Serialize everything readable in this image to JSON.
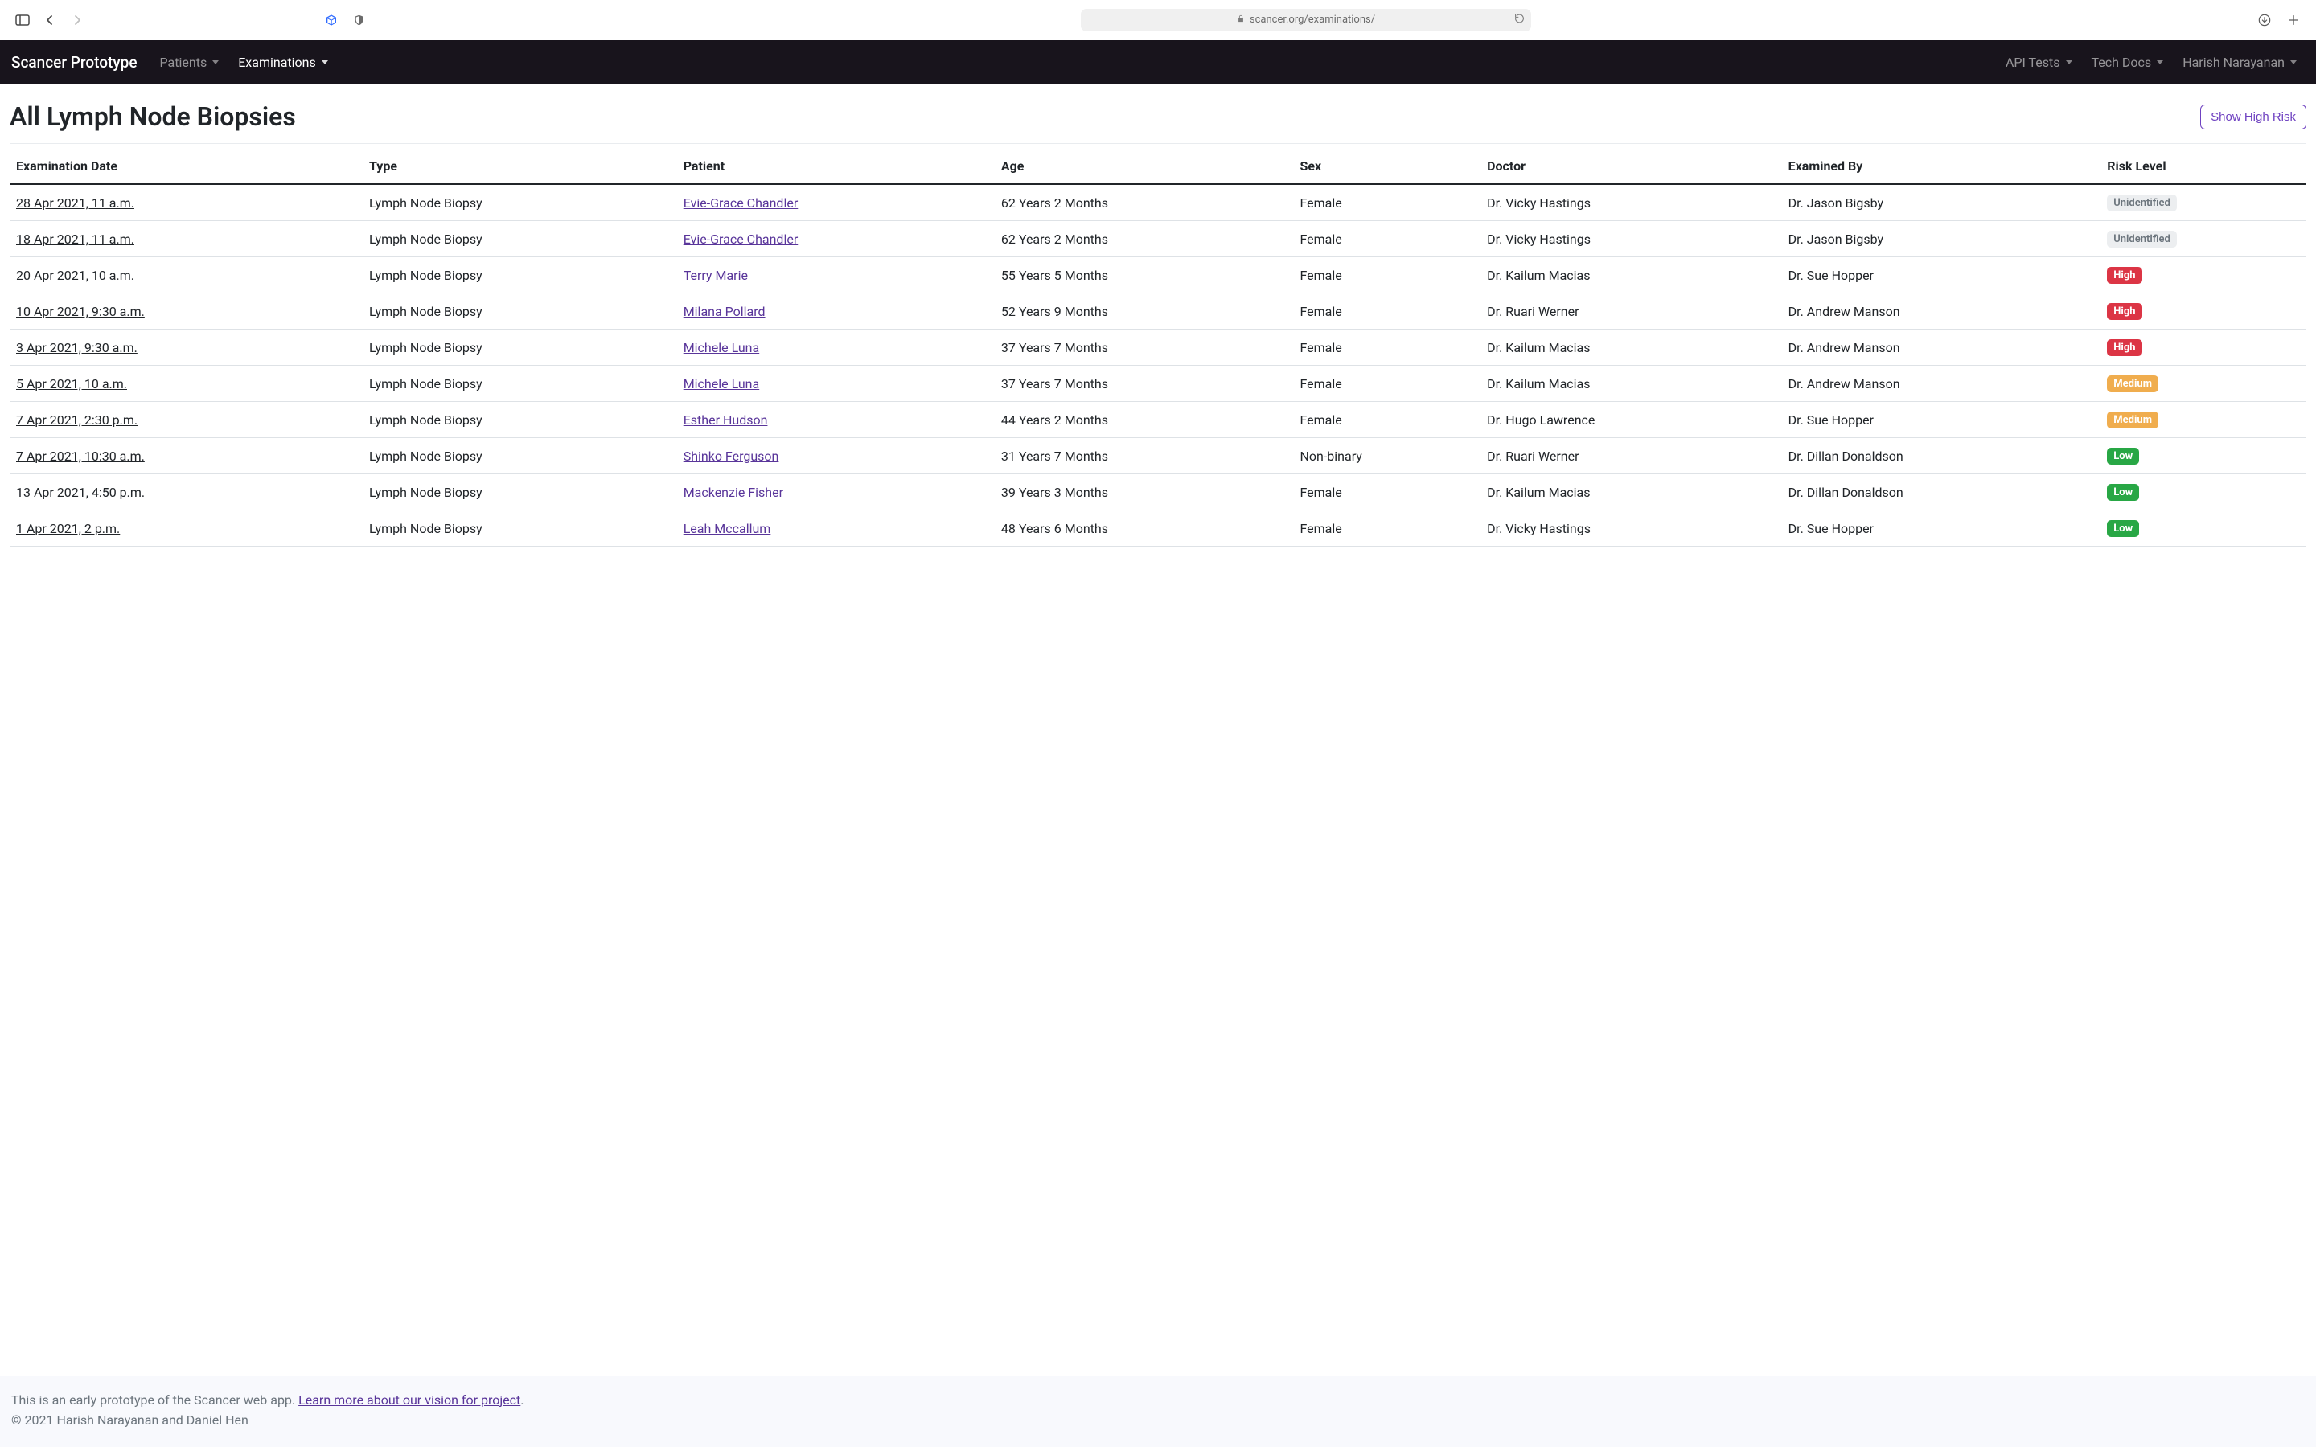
{
  "browser": {
    "url_display": "scancer.org/examinations/"
  },
  "nav": {
    "brand": "Scancer Prototype",
    "left": [
      {
        "label": "Patients",
        "active": false
      },
      {
        "label": "Examinations",
        "active": true
      }
    ],
    "right": [
      {
        "label": "API Tests"
      },
      {
        "label": "Tech Docs"
      },
      {
        "label": "Harish Narayanan"
      }
    ]
  },
  "page": {
    "title": "All Lymph Node Biopsies",
    "action_button": "Show High Risk"
  },
  "table": {
    "columns": [
      "Examination Date",
      "Type",
      "Patient",
      "Age",
      "Sex",
      "Doctor",
      "Examined By",
      "Risk Level"
    ],
    "risk_styles": {
      "Unidentified": {
        "class": "badge-unid",
        "bg": "#eceef0",
        "fg": "#6c757d"
      },
      "High": {
        "class": "badge-high",
        "bg": "#dc3545",
        "fg": "#ffffff"
      },
      "Medium": {
        "class": "badge-medium",
        "bg": "#f0ad4e",
        "fg": "#ffffff"
      },
      "Low": {
        "class": "badge-low",
        "bg": "#28a745",
        "fg": "#ffffff"
      }
    },
    "rows": [
      {
        "date": "28 Apr 2021, 11 a.m.",
        "type": "Lymph Node Biopsy",
        "patient": "Evie-Grace Chandler",
        "age": "62 Years 2 Months",
        "sex": "Female",
        "doctor": "Dr. Vicky Hastings",
        "examined_by": "Dr. Jason Bigsby",
        "risk": "Unidentified"
      },
      {
        "date": "18 Apr 2021, 11 a.m.",
        "type": "Lymph Node Biopsy",
        "patient": "Evie-Grace Chandler",
        "age": "62 Years 2 Months",
        "sex": "Female",
        "doctor": "Dr. Vicky Hastings",
        "examined_by": "Dr. Jason Bigsby",
        "risk": "Unidentified"
      },
      {
        "date": "20 Apr 2021, 10 a.m.",
        "type": "Lymph Node Biopsy",
        "patient": "Terry Marie",
        "age": "55 Years 5 Months",
        "sex": "Female",
        "doctor": "Dr. Kailum Macias",
        "examined_by": "Dr. Sue Hopper",
        "risk": "High"
      },
      {
        "date": "10 Apr 2021, 9:30 a.m.",
        "type": "Lymph Node Biopsy",
        "patient": "Milana Pollard",
        "age": "52 Years 9 Months",
        "sex": "Female",
        "doctor": "Dr. Ruari Werner",
        "examined_by": "Dr. Andrew Manson",
        "risk": "High"
      },
      {
        "date": "3 Apr 2021, 9:30 a.m.",
        "type": "Lymph Node Biopsy",
        "patient": "Michele Luna",
        "age": "37 Years 7 Months",
        "sex": "Female",
        "doctor": "Dr. Kailum Macias",
        "examined_by": "Dr. Andrew Manson",
        "risk": "High"
      },
      {
        "date": "5 Apr 2021, 10 a.m.",
        "type": "Lymph Node Biopsy",
        "patient": "Michele Luna",
        "age": "37 Years 7 Months",
        "sex": "Female",
        "doctor": "Dr. Kailum Macias",
        "examined_by": "Dr. Andrew Manson",
        "risk": "Medium"
      },
      {
        "date": "7 Apr 2021, 2:30 p.m.",
        "type": "Lymph Node Biopsy",
        "patient": "Esther Hudson",
        "age": "44 Years 2 Months",
        "sex": "Female",
        "doctor": "Dr. Hugo Lawrence",
        "examined_by": "Dr. Sue Hopper",
        "risk": "Medium"
      },
      {
        "date": "7 Apr 2021, 10:30 a.m.",
        "type": "Lymph Node Biopsy",
        "patient": "Shinko Ferguson",
        "age": "31 Years 7 Months",
        "sex": "Non-binary",
        "doctor": "Dr. Ruari Werner",
        "examined_by": "Dr. Dillan Donaldson",
        "risk": "Low"
      },
      {
        "date": "13 Apr 2021, 4:50 p.m.",
        "type": "Lymph Node Biopsy",
        "patient": "Mackenzie Fisher",
        "age": "39 Years 3 Months",
        "sex": "Female",
        "doctor": "Dr. Kailum Macias",
        "examined_by": "Dr. Dillan Donaldson",
        "risk": "Low"
      },
      {
        "date": "1 Apr 2021, 2 p.m.",
        "type": "Lymph Node Biopsy",
        "patient": "Leah Mccallum",
        "age": "48 Years 6 Months",
        "sex": "Female",
        "doctor": "Dr. Vicky Hastings",
        "examined_by": "Dr. Sue Hopper",
        "risk": "Low"
      }
    ]
  },
  "footer": {
    "intro_text": "This is an early prototype of the Scancer web app. ",
    "link_text": "Learn more about our vision for project",
    "after_link": ".",
    "copyright": "© 2021 Harish Narayanan and Daniel Hen"
  },
  "colors": {
    "navbar_bg": "#18141c",
    "link_purple": "#59359a",
    "outline_purple": "#6f42c1",
    "footer_bg": "#f8f9fd",
    "header_rule": "#e9ecef",
    "row_rule": "#dee2e6",
    "th_rule": "#212529"
  }
}
